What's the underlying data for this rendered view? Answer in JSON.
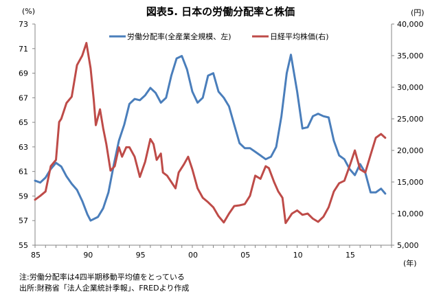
{
  "chart_data": {
    "type": "line",
    "title": "図表5. 日本の労働分配率と株価",
    "left_unit": "(%)",
    "right_unit": "(円)",
    "xlabel": "(年)",
    "x_range": [
      1985,
      2019
    ],
    "x_ticks": [
      1985,
      1990,
      1995,
      2000,
      2005,
      2010,
      2015
    ],
    "x_tick_labels": [
      "85",
      "90",
      "95",
      "00",
      "05",
      "10",
      "15"
    ],
    "y_left": {
      "range": [
        55,
        73
      ],
      "ticks": [
        55,
        57,
        59,
        61,
        63,
        65,
        67,
        69,
        71,
        73
      ],
      "tick_labels": [
        "55",
        "57",
        "59",
        "61",
        "63",
        "65",
        "67",
        "69",
        "71",
        "73"
      ]
    },
    "y_right": {
      "range": [
        5000,
        40000
      ],
      "ticks": [
        5000,
        10000,
        15000,
        20000,
        25000,
        30000,
        35000,
        40000
      ],
      "tick_labels": [
        "5,000",
        "10,000",
        "15,000",
        "20,000",
        "25,000",
        "30,000",
        "35,000",
        "40,000"
      ]
    },
    "grid": false,
    "legend_position": "top-center",
    "series": [
      {
        "name": "労働分配率(全産業全規模、左)",
        "axis": "left",
        "color": "#4a7ebb",
        "x": [
          1985,
          1985.5,
          1986,
          1986.5,
          1987,
          1987.5,
          1988,
          1988.5,
          1989,
          1989.5,
          1990,
          1990.3,
          1991,
          1991.5,
          1992,
          1992.5,
          1993,
          1993.5,
          1994,
          1994.5,
          1995,
          1995.5,
          1996,
          1996.5,
          1997,
          1997.5,
          1998,
          1998.5,
          1999,
          1999.5,
          2000,
          2000.5,
          2001,
          2001.5,
          2002,
          2002.5,
          2003,
          2003.5,
          2004,
          2004.5,
          2005,
          2005.5,
          2006,
          2006.5,
          2007,
          2007.5,
          2008,
          2008.5,
          2009,
          2009.4,
          2010,
          2010.5,
          2011,
          2011.5,
          2012,
          2012.5,
          2013,
          2013.5,
          2014,
          2014.5,
          2015,
          2015.5,
          2016,
          2016.5,
          2017,
          2017.5,
          2018,
          2018.4
        ],
        "values": [
          60.25,
          60.1,
          60.5,
          61.2,
          61.7,
          61.4,
          60.6,
          60.0,
          59.5,
          58.6,
          57.5,
          57.0,
          57.3,
          58.0,
          59.3,
          61.5,
          63.5,
          64.8,
          66.5,
          66.9,
          66.8,
          67.2,
          67.8,
          67.4,
          66.6,
          67.0,
          68.8,
          70.2,
          70.4,
          69.3,
          67.5,
          66.6,
          67.0,
          68.8,
          69.0,
          67.5,
          67.0,
          66.3,
          64.8,
          63.3,
          62.9,
          62.9,
          62.6,
          62.3,
          62.0,
          62.2,
          63.0,
          65.5,
          69.0,
          70.5,
          67.5,
          64.5,
          64.6,
          65.5,
          65.7,
          65.5,
          65.4,
          63.5,
          62.3,
          62.0,
          61.2,
          60.7,
          61.6,
          60.9,
          59.3,
          59.3,
          59.6,
          59.2
        ]
      },
      {
        "name": "日経平均株価(右)",
        "axis": "right",
        "color": "#be4b48",
        "x": [
          1985,
          1985.5,
          1986,
          1986.5,
          1987,
          1987.3,
          1987.5,
          1988,
          1988.5,
          1989,
          1989.5,
          1989.9,
          1990.3,
          1990.6,
          1990.8,
          1991.2,
          1991.5,
          1991.8,
          1992.2,
          1992.6,
          1993,
          1993.3,
          1993.7,
          1994,
          1994.5,
          1995,
          1995.5,
          1996,
          1996.3,
          1996.6,
          1997,
          1997.2,
          1997.6,
          1998,
          1998.4,
          1998.7,
          1999.2,
          1999.6,
          2000,
          2000.5,
          2001,
          2001.5,
          2002,
          2002.5,
          2003,
          2003.5,
          2004,
          2004.5,
          2005,
          2005.5,
          2006,
          2006.5,
          2007,
          2007.3,
          2007.8,
          2008.2,
          2008.6,
          2008.9,
          2009.5,
          2010,
          2010.5,
          2011,
          2011.5,
          2012,
          2012.5,
          2013,
          2013.5,
          2014,
          2014.5,
          2015,
          2015.5,
          2016,
          2016.5,
          2017,
          2017.5,
          2018,
          2018.4
        ],
        "values": [
          12200,
          12800,
          13500,
          17500,
          18500,
          24500,
          25000,
          27500,
          28500,
          33500,
          35000,
          37000,
          33000,
          28000,
          24000,
          26500,
          23500,
          21000,
          16800,
          17500,
          20500,
          19000,
          20500,
          20500,
          19000,
          15800,
          18200,
          21800,
          21000,
          18500,
          19500,
          16500,
          16000,
          15000,
          14000,
          16500,
          17800,
          19000,
          17000,
          14000,
          12500,
          11800,
          11000,
          9600,
          8600,
          10000,
          11200,
          11300,
          11500,
          12800,
          16000,
          15500,
          17500,
          17200,
          15000,
          13500,
          12500,
          8500,
          10000,
          10500,
          9800,
          10000,
          9200,
          8700,
          9500,
          11000,
          13500,
          14800,
          15200,
          17500,
          20000,
          17000,
          16500,
          19300,
          22000,
          22600,
          22000
        ]
      }
    ],
    "notes": [
      "注:労働分配率は4四半期移動平均値をとっている",
      "出所:財務省「法人企業統計季報」、FREDより作成"
    ]
  }
}
